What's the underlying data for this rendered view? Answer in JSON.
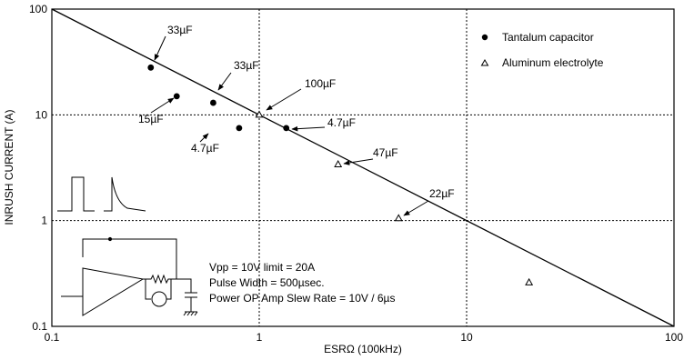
{
  "chart_data": {
    "type": "scatter",
    "xlabel": "ESRΩ (100kHz)",
    "ylabel": "INRUSH CURRENT (A)",
    "x_scale": "log",
    "y_scale": "log",
    "xlim": [
      0.1,
      100
    ],
    "ylim": [
      0.1,
      100
    ],
    "x_ticks": [
      "0.1",
      "1",
      "10",
      "100"
    ],
    "y_ticks": [
      "0.1",
      "1",
      "10",
      "100"
    ],
    "grid": true,
    "legend_position": "top-right",
    "series": [
      {
        "name": "Tantalum capacitor",
        "marker": "filled-circle",
        "points": [
          {
            "x": 0.3,
            "y": 28,
            "label": "33µF"
          },
          {
            "x": 0.4,
            "y": 15,
            "label": "15µF"
          },
          {
            "x": 0.6,
            "y": 13,
            "label": "33µF"
          },
          {
            "x": 0.8,
            "y": 7.5,
            "label": "4.7µF"
          },
          {
            "x": 1.35,
            "y": 7.5,
            "label": "4.7µF"
          }
        ]
      },
      {
        "name": "Aluminum electrolyte",
        "marker": "open-triangle",
        "points": [
          {
            "x": 1.0,
            "y": 10,
            "label": "100µF"
          },
          {
            "x": 2.4,
            "y": 3.4,
            "label": "47µF"
          },
          {
            "x": 4.7,
            "y": 1.05,
            "label": "22µF"
          },
          {
            "x": 20,
            "y": 0.26,
            "label": ""
          }
        ]
      }
    ],
    "reference_line": {
      "x": [
        0.1,
        100
      ],
      "y": [
        100,
        0.1
      ]
    },
    "notes": [
      "Vpp = 10V  limit = 20A",
      "Pulse Width = 500µsec.",
      "Power OP Amp Slew Rate = 10V / 6µs"
    ]
  }
}
